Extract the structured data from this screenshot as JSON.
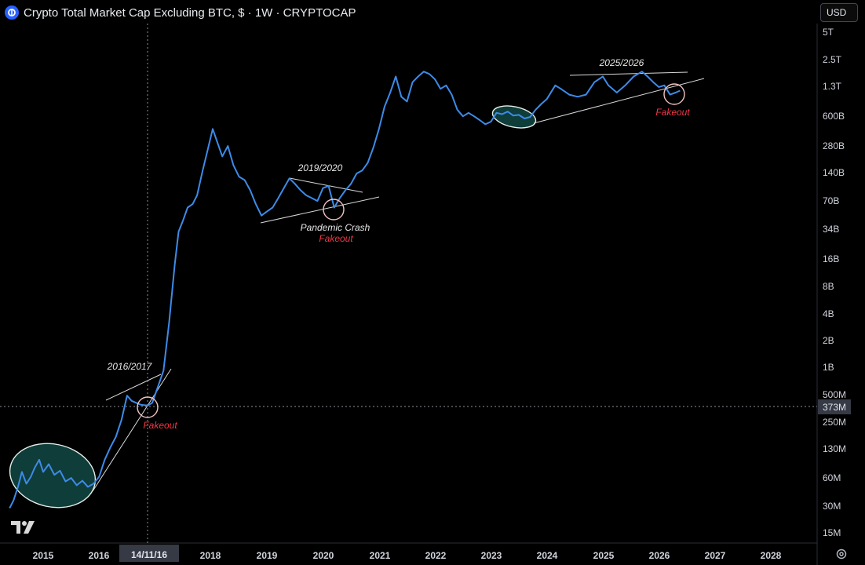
{
  "header": {
    "title": "Crypto Total Market Cap Excluding BTC, $ · 1W · CRYPTOCAP",
    "currency": "USD",
    "logo_icon": "coin-logo-icon"
  },
  "colors": {
    "background": "#000000",
    "line": "#3d8be8",
    "text": "#d1d4dc",
    "fakeout": "#f23645",
    "ellipse_fill": "#0f3d3a",
    "trendline": "#d9d9d9"
  },
  "chart_data": {
    "type": "line",
    "title": "Crypto Total Market Cap Excluding BTC, $ · 1W · CRYPTOCAP",
    "xlabel": "",
    "ylabel": "",
    "y_scale": "log",
    "grid": false,
    "x_tick_labels": [
      "2015",
      "2016",
      "2018",
      "2019",
      "2020",
      "2021",
      "2022",
      "2023",
      "2024",
      "2025",
      "2026",
      "2027",
      "2028"
    ],
    "crosshair_x_label": "14/11/16",
    "crosshair_y_label": "373M",
    "y_tick_labels": [
      "5T",
      "2.5T",
      "1.3T",
      "600B",
      "280B",
      "140B",
      "70B",
      "34B",
      "16B",
      "8B",
      "4B",
      "2B",
      "1B",
      "500M",
      "250M",
      "130M",
      "60M",
      "30M",
      "15M"
    ],
    "series": [
      {
        "points": [
          [
            "2014.40",
            28000000
          ],
          [
            "2014.47",
            34000000
          ],
          [
            "2014.55",
            48000000
          ],
          [
            "2014.62",
            70000000
          ],
          [
            "2014.70",
            52000000
          ],
          [
            "2014.78",
            62000000
          ],
          [
            "2014.85",
            78000000
          ],
          [
            "2014.93",
            95000000
          ],
          [
            "2015.00",
            70000000
          ],
          [
            "2015.10",
            85000000
          ],
          [
            "2015.20",
            65000000
          ],
          [
            "2015.30",
            72000000
          ],
          [
            "2015.40",
            55000000
          ],
          [
            "2015.50",
            60000000
          ],
          [
            "2015.60",
            50000000
          ],
          [
            "2015.70",
            56000000
          ],
          [
            "2015.80",
            48000000
          ],
          [
            "2015.90",
            52000000
          ],
          [
            "2016.00",
            62000000
          ],
          [
            "2016.10",
            95000000
          ],
          [
            "2016.20",
            130000000
          ],
          [
            "2016.30",
            170000000
          ],
          [
            "2016.40",
            260000000
          ],
          [
            "2016.50",
            480000000
          ],
          [
            "2016.58",
            420000000
          ],
          [
            "2016.66",
            400000000
          ],
          [
            "2016.75",
            380000000
          ],
          [
            "2016.87",
            373000000
          ],
          [
            "2016.95",
            400000000
          ],
          [
            "2017.05",
            600000000
          ],
          [
            "2017.15",
            900000000
          ],
          [
            "2017.25",
            3000000000
          ],
          [
            "2017.35",
            13000000000
          ],
          [
            "2017.42",
            30000000000
          ],
          [
            "2017.50",
            40000000000
          ],
          [
            "2017.58",
            55000000000
          ],
          [
            "2017.67",
            60000000000
          ],
          [
            "2017.75",
            75000000000
          ],
          [
            "2017.85",
            140000000000
          ],
          [
            "2017.95",
            250000000000
          ],
          [
            "2018.03",
            400000000000
          ],
          [
            "2018.10",
            300000000000
          ],
          [
            "2018.20",
            200000000000
          ],
          [
            "2018.30",
            260000000000
          ],
          [
            "2018.40",
            160000000000
          ],
          [
            "2018.50",
            120000000000
          ],
          [
            "2018.60",
            110000000000
          ],
          [
            "2018.70",
            85000000000
          ],
          [
            "2018.80",
            60000000000
          ],
          [
            "2018.90",
            45000000000
          ],
          [
            "2019.00",
            50000000000
          ],
          [
            "2019.10",
            55000000000
          ],
          [
            "2019.20",
            70000000000
          ],
          [
            "2019.30",
            90000000000
          ],
          [
            "2019.40",
            115000000000
          ],
          [
            "2019.50",
            100000000000
          ],
          [
            "2019.60",
            85000000000
          ],
          [
            "2019.70",
            75000000000
          ],
          [
            "2019.80",
            70000000000
          ],
          [
            "2019.90",
            65000000000
          ],
          [
            "2020.00",
            90000000000
          ],
          [
            "2020.10",
            95000000000
          ],
          [
            "2020.20",
            55000000000
          ],
          [
            "2020.30",
            70000000000
          ],
          [
            "2020.40",
            85000000000
          ],
          [
            "2020.50",
            100000000000
          ],
          [
            "2020.60",
            130000000000
          ],
          [
            "2020.70",
            140000000000
          ],
          [
            "2020.80",
            170000000000
          ],
          [
            "2020.90",
            250000000000
          ],
          [
            "2021.00",
            400000000000
          ],
          [
            "2021.10",
            700000000000
          ],
          [
            "2021.20",
            1000000000000
          ],
          [
            "2021.30",
            1500000000000
          ],
          [
            "2021.40",
            900000000000
          ],
          [
            "2021.50",
            800000000000
          ],
          [
            "2021.60",
            1300000000000
          ],
          [
            "2021.70",
            1500000000000
          ],
          [
            "2021.80",
            1700000000000
          ],
          [
            "2021.90",
            1600000000000
          ],
          [
            "2022.00",
            1400000000000
          ],
          [
            "2022.10",
            1100000000000
          ],
          [
            "2022.20",
            1200000000000
          ],
          [
            "2022.30",
            950000000000
          ],
          [
            "2022.40",
            650000000000
          ],
          [
            "2022.50",
            550000000000
          ],
          [
            "2022.60",
            600000000000
          ],
          [
            "2022.70",
            550000000000
          ],
          [
            "2022.80",
            500000000000
          ],
          [
            "2022.90",
            450000000000
          ],
          [
            "2023.00",
            480000000000
          ],
          [
            "2023.10",
            600000000000
          ],
          [
            "2023.20",
            580000000000
          ],
          [
            "2023.30",
            620000000000
          ],
          [
            "2023.40",
            560000000000
          ],
          [
            "2023.50",
            570000000000
          ],
          [
            "2023.60",
            520000000000
          ],
          [
            "2023.70",
            540000000000
          ],
          [
            "2023.80",
            650000000000
          ],
          [
            "2023.90",
            750000000000
          ],
          [
            "2024.00",
            850000000000
          ],
          [
            "2024.15",
            1200000000000
          ],
          [
            "2024.25",
            1100000000000
          ],
          [
            "2024.40",
            950000000000
          ],
          [
            "2024.55",
            900000000000
          ],
          [
            "2024.70",
            950000000000
          ],
          [
            "2024.85",
            1300000000000
          ],
          [
            "2025.00",
            1500000000000
          ],
          [
            "2025.10",
            1200000000000
          ],
          [
            "2025.25",
            1000000000000
          ],
          [
            "2025.40",
            1200000000000
          ],
          [
            "2025.55",
            1500000000000
          ],
          [
            "2025.70",
            1700000000000
          ],
          [
            "2025.80",
            1500000000000
          ],
          [
            "2025.90",
            1300000000000
          ],
          [
            "2026.00",
            1150000000000
          ],
          [
            "2026.10",
            1200000000000
          ],
          [
            "2026.20",
            950000000000
          ],
          [
            "2026.30",
            1000000000000
          ],
          [
            "2026.38",
            1050000000000
          ]
        ]
      }
    ],
    "annotations": [
      {
        "text": "2016/2017"
      },
      {
        "text": "Fakeout"
      },
      {
        "text": "2019/2020"
      },
      {
        "text": "Pandemic Crash"
      },
      {
        "text": "Fakeout"
      },
      {
        "text": "2025/2026"
      },
      {
        "text": "Fakeout"
      }
    ]
  }
}
